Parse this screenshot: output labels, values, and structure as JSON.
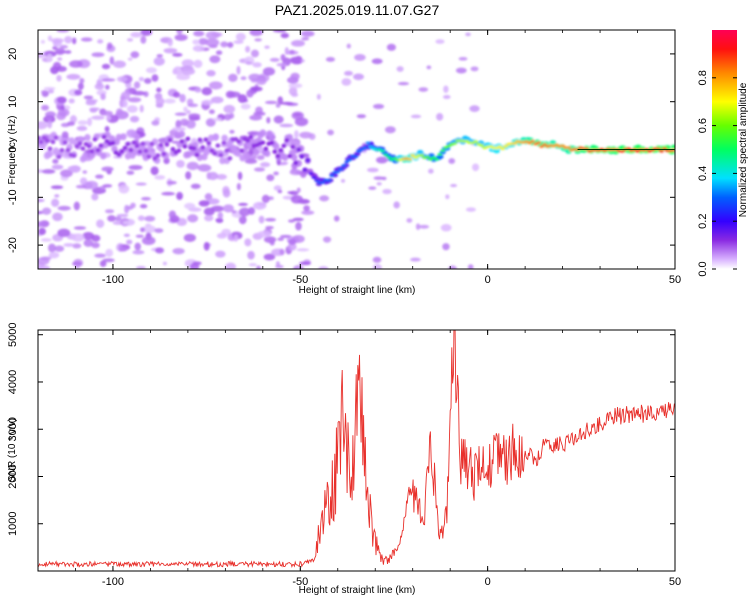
{
  "title": "PAZ1.2025.019.11.07.G27",
  "chart_data": [
    {
      "type": "heatmap",
      "panel": "spectrogram",
      "xlabel": "Height of straight line (km)",
      "ylabel": "Frequency (Hz)",
      "xlim": [
        -120,
        50
      ],
      "ylim": [
        -25,
        25
      ],
      "x_ticks": [
        "-100",
        "-50",
        "0",
        "50"
      ],
      "y_ticks": [
        "20",
        "10",
        "0",
        "-10",
        "-20"
      ],
      "colorbar": {
        "label": "Normalized spectral amplitude",
        "range": [
          0,
          1
        ],
        "ticks": [
          "0.0",
          "0.2",
          "0.4",
          "0.6",
          "0.8"
        ],
        "colors": [
          "#ffffff",
          "#cc88ff",
          "#7700ff",
          "#0000ff",
          "#00ddff",
          "#00ff00",
          "#ffff00",
          "#ff8800",
          "#ff0000",
          "#ff0044"
        ]
      },
      "ridge": {
        "x": [
          -120,
          -110,
          -100,
          -90,
          -80,
          -70,
          -60,
          -52,
          -48,
          -45,
          -42,
          -38,
          -35,
          -32,
          -29,
          -25,
          -22,
          -18,
          -14,
          -10,
          -6,
          -2,
          2,
          6,
          10,
          14,
          18,
          22,
          26,
          30,
          35,
          40,
          45,
          50
        ],
        "frequency_hz": [
          1,
          0,
          1,
          0,
          1,
          0,
          1,
          0,
          -4,
          -7,
          -6,
          -3,
          -1,
          1,
          0,
          -2,
          -2,
          -1,
          -2,
          1,
          2,
          1,
          0,
          1,
          2,
          1,
          1,
          0,
          0,
          0,
          0,
          0,
          0,
          0
        ],
        "amplitude": [
          0.1,
          0.1,
          0.12,
          0.1,
          0.12,
          0.1,
          0.12,
          0.12,
          0.15,
          0.28,
          0.3,
          0.3,
          0.3,
          0.32,
          0.45,
          0.5,
          0.8,
          0.65,
          0.5,
          0.6,
          0.65,
          0.65,
          0.7,
          0.72,
          0.8,
          0.85,
          0.8,
          0.82,
          0.88,
          0.9,
          0.9,
          0.92,
          0.92,
          0.92
        ]
      }
    },
    {
      "type": "line",
      "panel": "snr",
      "xlabel": "Height of straight line (km)",
      "ylabel": "SNR (10 * v/v)",
      "xlim": [
        -120,
        50
      ],
      "ylim": [
        0,
        5100
      ],
      "x_ticks": [
        "-100",
        "-50",
        "0",
        "50"
      ],
      "y_ticks": [
        "5000",
        "4000",
        "3000",
        "2000",
        "1000"
      ],
      "color": "#e8302b",
      "series": [
        {
          "x": [
            -120,
            -100,
            -80,
            -60,
            -50,
            -47,
            -45,
            -43,
            -41,
            -39,
            -37,
            -35,
            -33,
            -31,
            -29,
            -27,
            -25,
            -23,
            -21,
            -19,
            -17,
            -15,
            -13,
            -11,
            -9,
            -7,
            -5,
            -3,
            -1,
            1,
            3,
            5,
            7,
            9,
            11,
            13,
            15,
            17,
            19,
            21,
            23,
            25,
            30,
            35,
            40,
            45,
            50
          ],
          "values": [
            100,
            100,
            100,
            100,
            100,
            200,
            600,
            1400,
            1300,
            2600,
            1700,
            2800,
            2400,
            700,
            300,
            200,
            400,
            700,
            1700,
            1500,
            1100,
            2600,
            600,
            1100,
            5000,
            2200,
            2100,
            1900,
            2300,
            2300,
            2500,
            2200,
            2600,
            2400,
            2500,
            2300,
            2700,
            2600,
            2700,
            2700,
            2800,
            2900,
            3100,
            3300,
            3300,
            3400,
            3400
          ]
        }
      ]
    }
  ]
}
